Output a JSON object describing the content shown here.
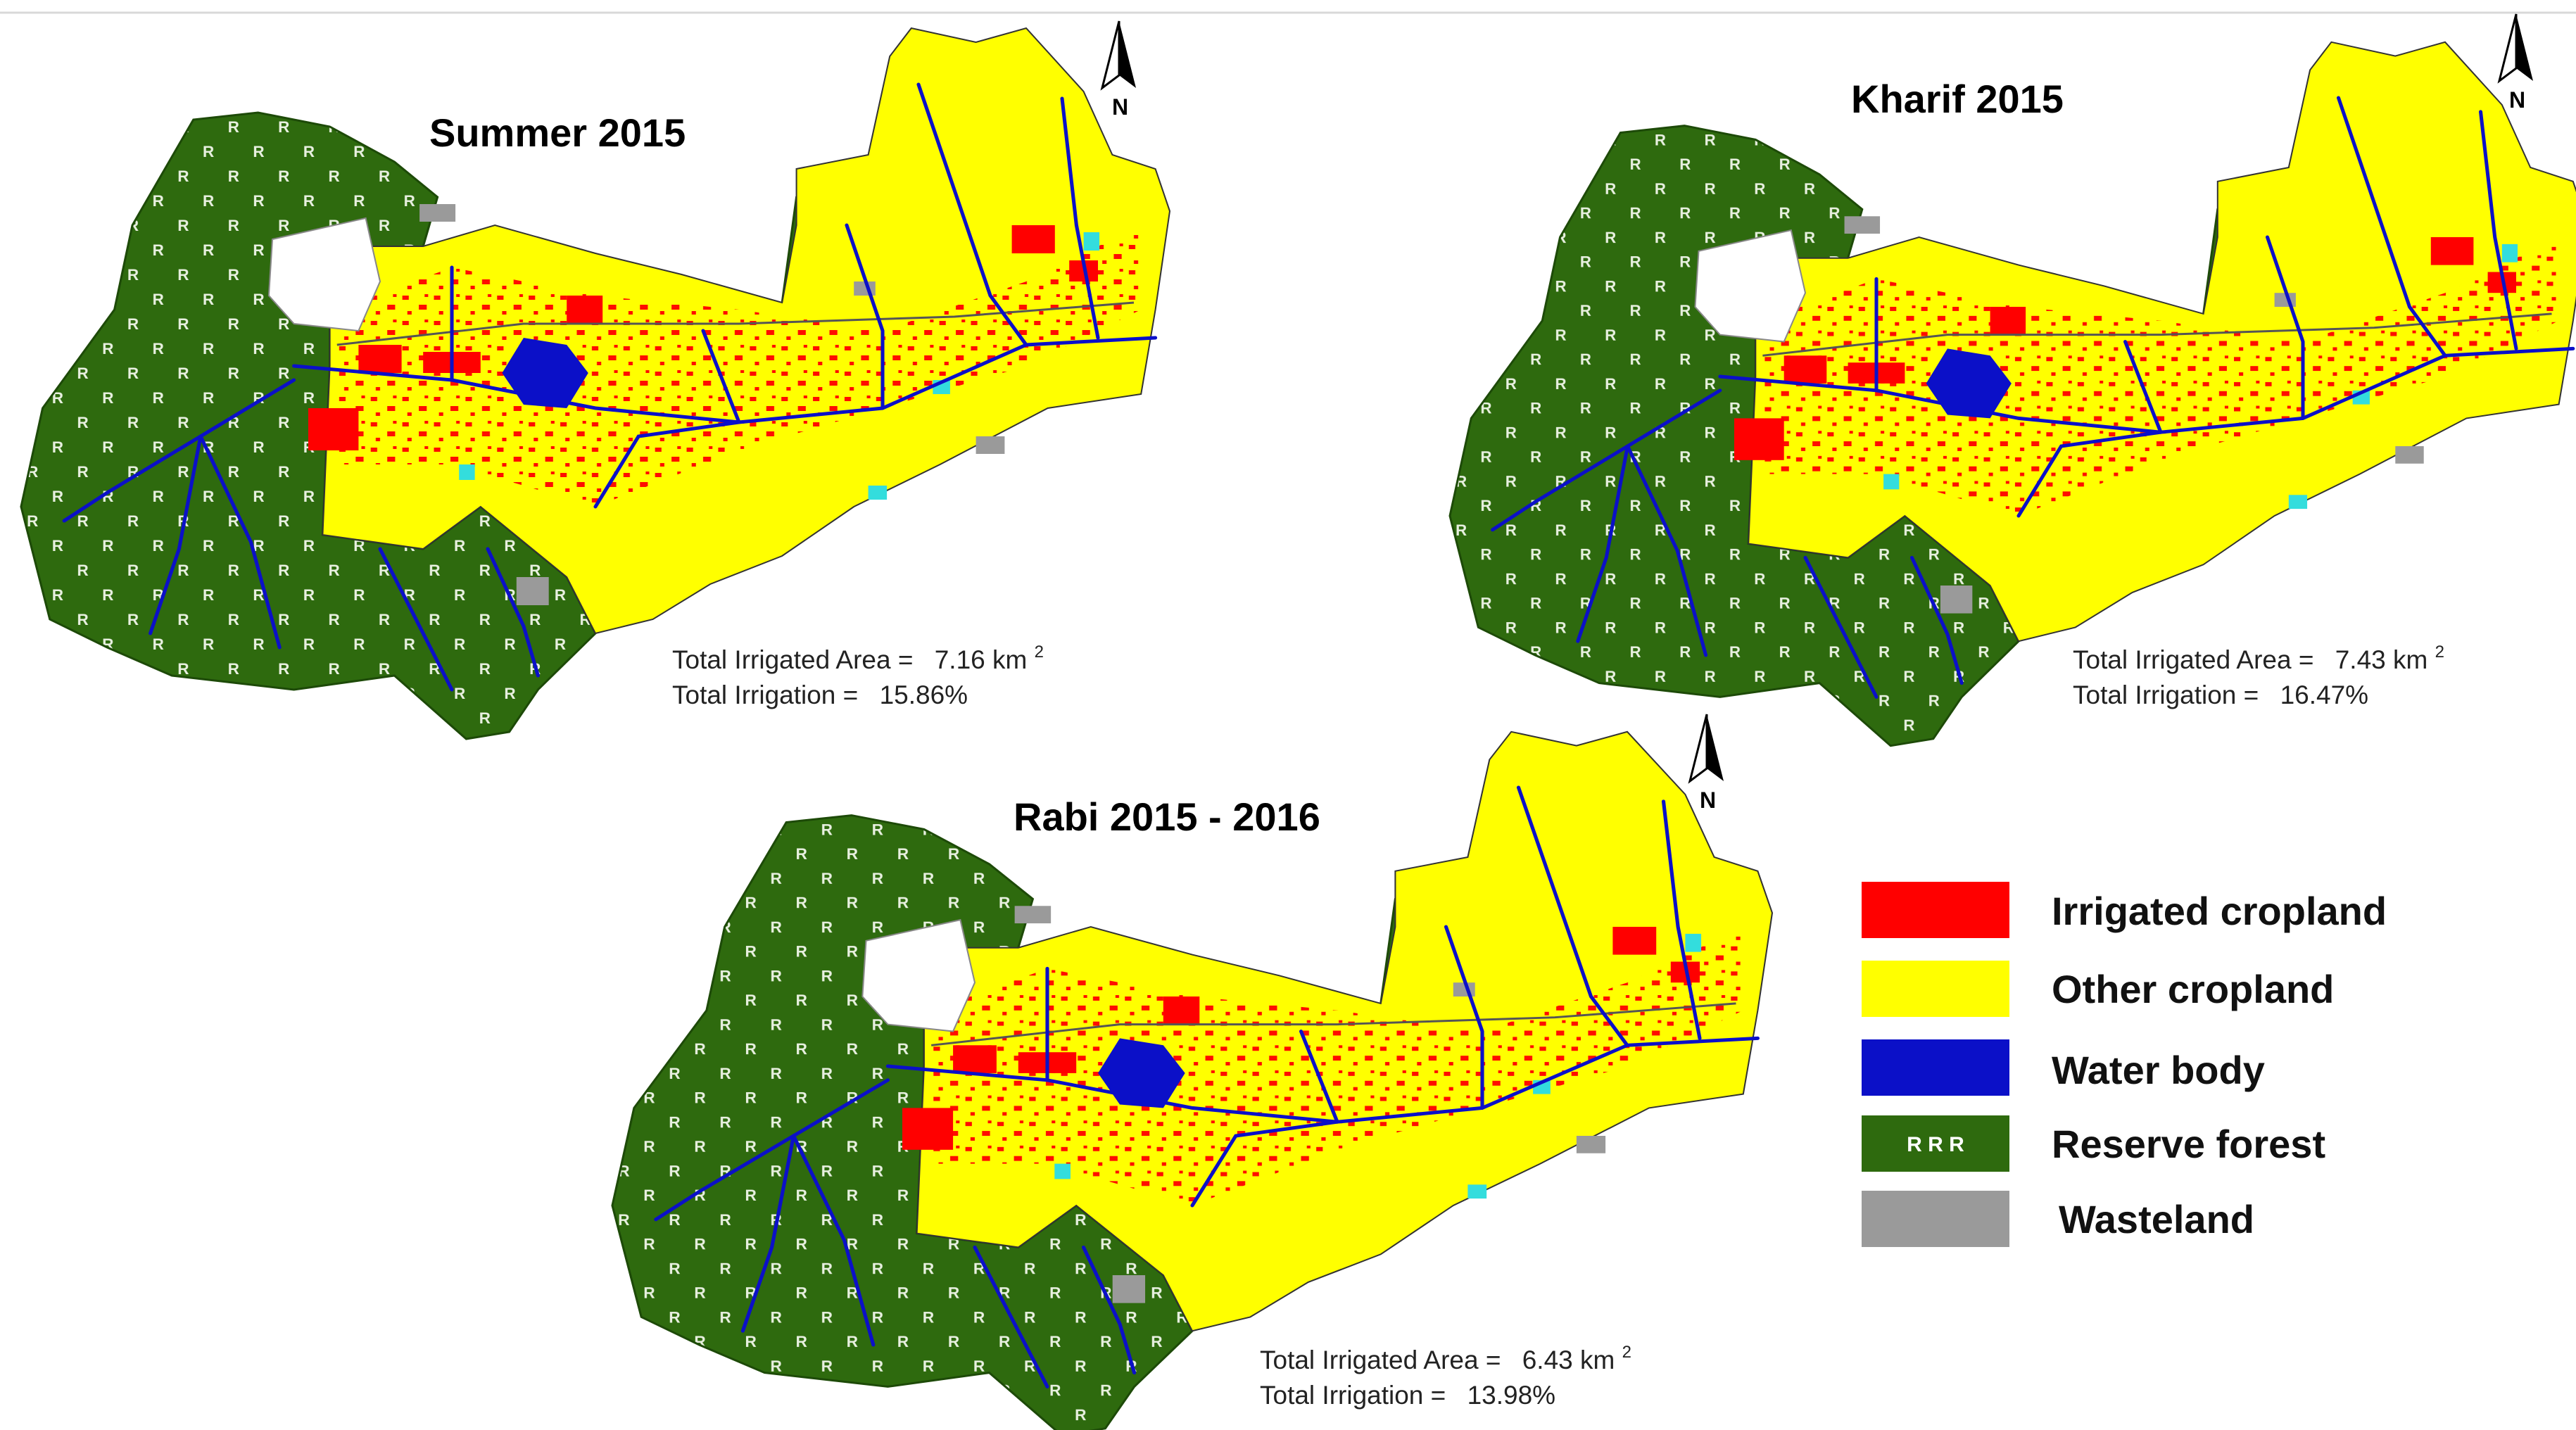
{
  "colors": {
    "irrigated": "#ff0000",
    "other": "#ffff00",
    "water": "#0b10c8",
    "forest": "#2e6a0e",
    "waste": "#9a9a9a",
    "settlement": "#ffffff",
    "cyan": "#33dddd",
    "roads": "#555555"
  },
  "maps": [
    {
      "id": "summer",
      "title": "Summer 2015",
      "area_label": "Total Irrigated Area =",
      "area_value": "7.16 km",
      "area_sup": "2",
      "irr_label": "Total Irrigation =",
      "irr_value": "15.86%",
      "irrigated_fraction": 0.1586
    },
    {
      "id": "kharif",
      "title": "Kharif 2015",
      "area_label": "Total Irrigated Area =",
      "area_value": "7.43 km",
      "area_sup": "2",
      "irr_label": "Total Irrigation =",
      "irr_value": "16.47%",
      "irrigated_fraction": 0.1647
    },
    {
      "id": "rabi",
      "title": "Rabi 2015 - 2016",
      "area_label": "Total Irrigated Area =",
      "area_value": "6.43 km",
      "area_sup": "2",
      "irr_label": "Total Irrigation =",
      "irr_value": "13.98%",
      "irrigated_fraction": 0.1398
    }
  ],
  "north_label": "N",
  "legend": [
    {
      "key": "irrigated",
      "label": "Irrigated cropland",
      "color": "#ff0000"
    },
    {
      "key": "other",
      "label": "Other cropland",
      "color": "#ffff00"
    },
    {
      "key": "water",
      "label": "Water body",
      "color": "#0b10c8"
    },
    {
      "key": "forest",
      "label": "Reserve forest",
      "color": "#2e6a0e",
      "swatch_text": "R R R"
    },
    {
      "key": "waste",
      "label": "Wasteland",
      "color": "#9a9a9a"
    }
  ]
}
